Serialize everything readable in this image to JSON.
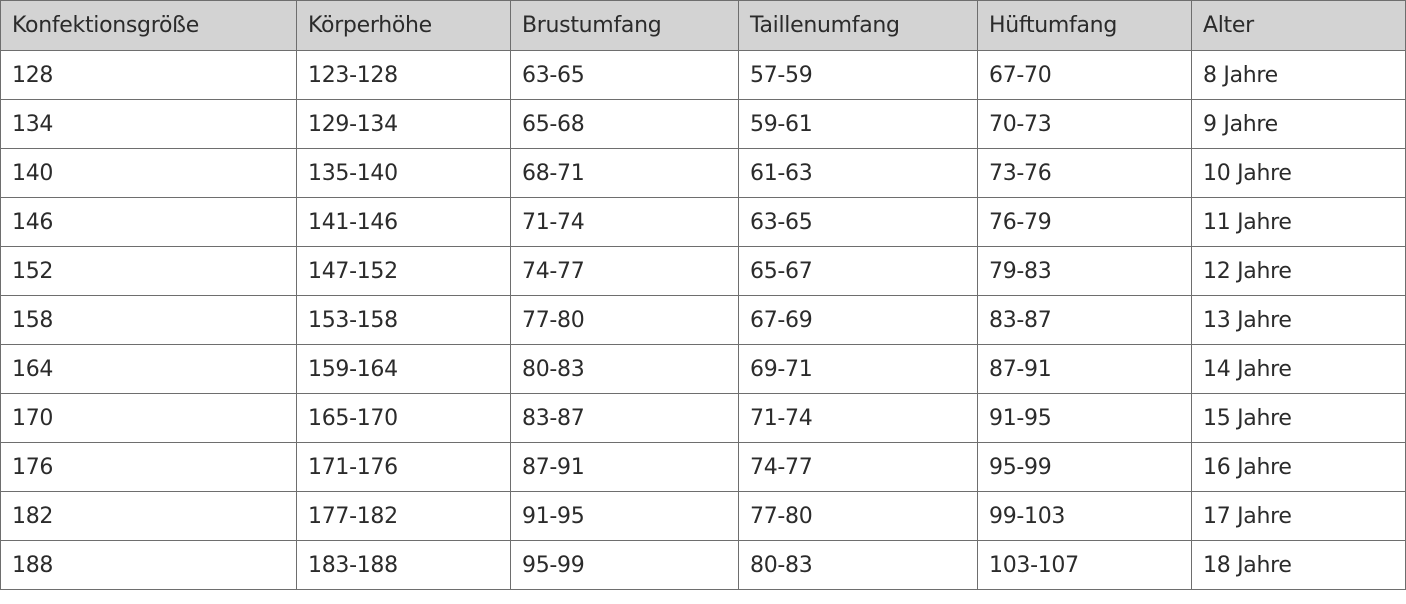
{
  "table": {
    "headers": [
      "Konfektionsgröße",
      "Körperhöhe",
      "Brustumfang",
      "Taillenumfang",
      "Hüftumfang",
      "Alter"
    ],
    "rows": [
      [
        "128",
        "123-128",
        "63-65",
        "57-59",
        "67-70",
        "8 Jahre"
      ],
      [
        "134",
        "129-134",
        "65-68",
        "59-61",
        "70-73",
        "9 Jahre"
      ],
      [
        "140",
        "135-140",
        "68-71",
        "61-63",
        "73-76",
        "10 Jahre"
      ],
      [
        "146",
        "141-146",
        "71-74",
        "63-65",
        "76-79",
        "11 Jahre"
      ],
      [
        "152",
        "147-152",
        "74-77",
        "65-67",
        "79-83",
        "12 Jahre"
      ],
      [
        "158",
        "153-158",
        "77-80",
        "67-69",
        "83-87",
        "13 Jahre"
      ],
      [
        "164",
        "159-164",
        "80-83",
        "69-71",
        "87-91",
        "14 Jahre"
      ],
      [
        "170",
        "165-170",
        "83-87",
        "71-74",
        "91-95",
        "15 Jahre"
      ],
      [
        "176",
        "171-176",
        "87-91",
        "74-77",
        "95-99",
        "16 Jahre"
      ],
      [
        "182",
        "177-182",
        "91-95",
        "77-80",
        "99-103",
        "17 Jahre"
      ],
      [
        "188",
        "183-188",
        "95-99",
        "80-83",
        "103-107",
        "18 Jahre"
      ]
    ]
  }
}
